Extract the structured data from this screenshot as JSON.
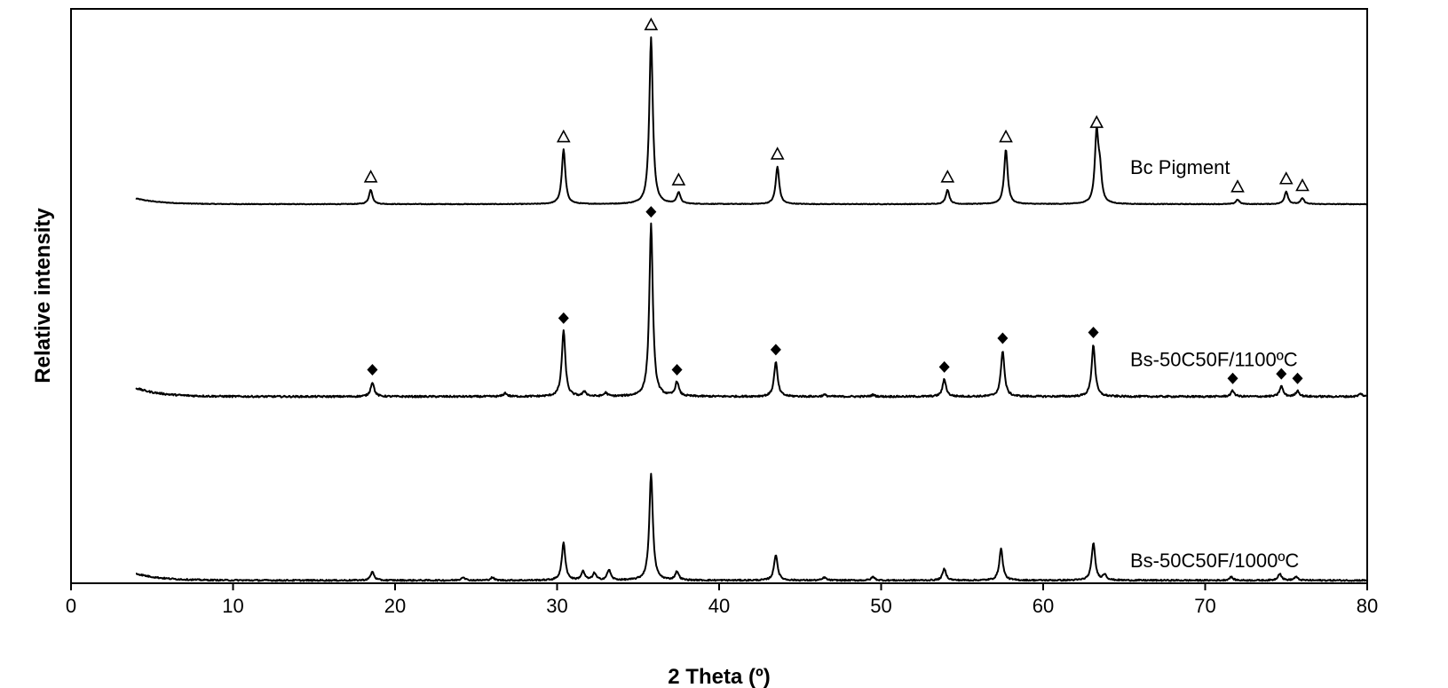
{
  "chart_data": {
    "type": "line",
    "title": "",
    "xlabel": "2 Theta (º)",
    "ylabel": "Relative intensity",
    "xlim": [
      0,
      80
    ],
    "ylim": [
      0,
      100
    ],
    "xticks": [
      0,
      10,
      20,
      30,
      40,
      50,
      60,
      70,
      80
    ],
    "grid": false,
    "legend": "none",
    "series": [
      {
        "name": "Bc Pigment",
        "baseline": 66,
        "start": 4,
        "end": 80,
        "peaks": [
          {
            "x": 18.5,
            "h": 2.5
          },
          {
            "x": 30.4,
            "h": 9.5
          },
          {
            "x": 35.8,
            "h": 29
          },
          {
            "x": 37.5,
            "h": 2
          },
          {
            "x": 43.6,
            "h": 6.5
          },
          {
            "x": 54.1,
            "h": 2.5
          },
          {
            "x": 57.7,
            "h": 9.5
          },
          {
            "x": 63.3,
            "h": 12
          },
          {
            "x": 63.5,
            "h": 5
          },
          {
            "x": 72.0,
            "h": 0.8
          },
          {
            "x": 75.0,
            "h": 2.2
          },
          {
            "x": 76.0,
            "h": 1.0
          }
        ],
        "markers": {
          "shape": "open-triangle",
          "x": [
            18.5,
            30.4,
            35.8,
            37.5,
            43.6,
            54.1,
            57.7,
            63.3,
            72.0,
            75.0,
            76.0
          ]
        },
        "noise": 0.12,
        "hump": 1.0
      },
      {
        "name": "Bs-50C50F/1100ºC",
        "baseline": 32.5,
        "start": 4,
        "end": 80,
        "peaks": [
          {
            "x": 18.6,
            "h": 2.5
          },
          {
            "x": 30.4,
            "h": 11.5
          },
          {
            "x": 35.8,
            "h": 30
          },
          {
            "x": 37.4,
            "h": 2.5
          },
          {
            "x": 43.5,
            "h": 6
          },
          {
            "x": 46.5,
            "h": 0.3
          },
          {
            "x": 49.5,
            "h": 0.3
          },
          {
            "x": 53.9,
            "h": 3
          },
          {
            "x": 57.5,
            "h": 8
          },
          {
            "x": 63.1,
            "h": 9
          },
          {
            "x": 71.7,
            "h": 1.0
          },
          {
            "x": 74.7,
            "h": 1.8
          },
          {
            "x": 75.7,
            "h": 1.0
          },
          {
            "x": 79.6,
            "h": 0.5
          },
          {
            "x": 31.7,
            "h": 0.8
          },
          {
            "x": 33.0,
            "h": 0.6
          },
          {
            "x": 26.8,
            "h": 0.6
          }
        ],
        "markers": {
          "shape": "filled-diamond",
          "x": [
            18.6,
            30.4,
            35.8,
            37.4,
            43.5,
            53.9,
            57.5,
            63.1,
            71.7,
            74.7,
            75.7
          ]
        },
        "noise": 0.3,
        "hump": 1.5
      },
      {
        "name": "Bs-50C50F/1000ºC",
        "baseline": 0.5,
        "start": 4,
        "end": 80,
        "peaks": [
          {
            "x": 18.6,
            "h": 1.5
          },
          {
            "x": 24.2,
            "h": 0.6
          },
          {
            "x": 26.0,
            "h": 0.5
          },
          {
            "x": 30.4,
            "h": 6.5
          },
          {
            "x": 31.6,
            "h": 1.5
          },
          {
            "x": 32.3,
            "h": 1.2
          },
          {
            "x": 33.2,
            "h": 1.8
          },
          {
            "x": 35.8,
            "h": 18.5
          },
          {
            "x": 37.4,
            "h": 1.5
          },
          {
            "x": 43.5,
            "h": 4.5
          },
          {
            "x": 46.5,
            "h": 0.5
          },
          {
            "x": 49.5,
            "h": 0.6
          },
          {
            "x": 53.9,
            "h": 2
          },
          {
            "x": 57.4,
            "h": 5.5
          },
          {
            "x": 63.1,
            "h": 6.5
          },
          {
            "x": 63.8,
            "h": 1.0
          },
          {
            "x": 71.6,
            "h": 0.6
          },
          {
            "x": 74.6,
            "h": 1.2
          },
          {
            "x": 75.6,
            "h": 0.6
          }
        ],
        "markers": {
          "shape": "none",
          "x": []
        },
        "noise": 0.25,
        "hump": 1.2
      }
    ]
  }
}
